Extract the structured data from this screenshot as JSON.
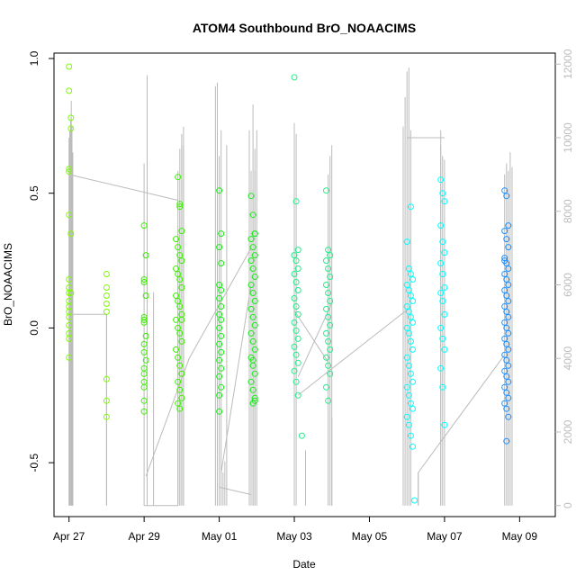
{
  "chart_data": {
    "type": "scatter",
    "title": "ATOM4 Southbound BrO_NOAACIMS",
    "xlabel": "Date",
    "ylabel": "BrO_NOAACIMS",
    "x_ticks": [
      {
        "day": 0,
        "label": "Apr 27"
      },
      {
        "day": 2,
        "label": "Apr 29"
      },
      {
        "day": 4,
        "label": "May 01"
      },
      {
        "day": 6,
        "label": "May 03"
      },
      {
        "day": 8,
        "label": "May 05"
      },
      {
        "day": 10,
        "label": "May 07"
      },
      {
        "day": 12,
        "label": "May 09"
      }
    ],
    "xlim": [
      -0.4,
      12.95
    ],
    "ylim": [
      -0.7,
      1.02
    ],
    "y_ticks": [
      {
        "value": -0.5,
        "label": "-0.5"
      },
      {
        "value": 0.0,
        "label": "0.0"
      },
      {
        "value": 0.5,
        "label": "0.5"
      },
      {
        "value": 1.0,
        "label": "1.0"
      }
    ],
    "y2_label": "",
    "y2lim": [
      -300,
      12300
    ],
    "y2_ticks": [
      {
        "value": 0,
        "label": "0"
      },
      {
        "value": 2000,
        "label": "2000"
      },
      {
        "value": 4000,
        "label": "4000"
      },
      {
        "value": 6000,
        "label": "6000"
      },
      {
        "value": 8000,
        "label": "8000"
      },
      {
        "value": 10000,
        "label": "10000"
      },
      {
        "value": 12000,
        "label": "12000"
      }
    ],
    "series": [
      {
        "name": "BrO_NOAACIMS",
        "color": "#7cfc00",
        "x": [
          0.0,
          0.0,
          0.05,
          0.05,
          0.0,
          0.0,
          0.0,
          0.05,
          0.0,
          0.0,
          0.0,
          0.0,
          0.0,
          0.0,
          0.0,
          0.0,
          0.0,
          0.0,
          0.0,
          0.05,
          1.0,
          1.0,
          1.0,
          1.0,
          1.0,
          1.0,
          1.0,
          1.0
        ],
        "y": [
          0.97,
          0.88,
          0.78,
          0.74,
          0.59,
          0.58,
          0.42,
          0.35,
          0.18,
          0.15,
          0.13,
          0.1,
          0.08,
          0.06,
          0.04,
          0.01,
          -0.02,
          -0.04,
          -0.11,
          0.13,
          0.2,
          0.15,
          0.12,
          0.09,
          0.06,
          -0.19,
          -0.27,
          -0.33
        ]
      },
      {
        "name": "BrO_NOAACIMS",
        "color": "#3cf000",
        "x": [
          2.0,
          2.05,
          2.0,
          2.0,
          2.05,
          2.0,
          2.0,
          2.0,
          2.05,
          2.0,
          2.0,
          2.05,
          2.0,
          2.0,
          2.0,
          2.0,
          2.0,
          2.0,
          2.9,
          2.95,
          3.0,
          2.85,
          2.9,
          2.95,
          3.0,
          2.85,
          2.9,
          2.95,
          3.0,
          2.85,
          2.9,
          2.95,
          3.0,
          2.85,
          2.9,
          2.95,
          3.0,
          2.85,
          2.9,
          2.95,
          3.0,
          2.9,
          2.95,
          3.0,
          2.9,
          2.95,
          3.0,
          2.95
        ],
        "y": [
          0.38,
          0.27,
          0.18,
          0.17,
          0.12,
          0.04,
          0.03,
          0.02,
          -0.03,
          -0.06,
          -0.09,
          -0.12,
          -0.15,
          -0.17,
          -0.2,
          -0.22,
          -0.27,
          -0.31,
          0.56,
          0.46,
          0.36,
          0.33,
          0.3,
          0.27,
          0.25,
          0.22,
          0.2,
          0.18,
          0.15,
          0.12,
          0.1,
          0.08,
          0.05,
          0.03,
          0.0,
          -0.02,
          -0.05,
          -0.08,
          -0.11,
          -0.14,
          -0.17,
          -0.2,
          -0.23,
          -0.26,
          -0.28,
          -0.3,
          0.03,
          0.45
        ]
      },
      {
        "name": "BrO_NOAACIMS",
        "color": "#1aec1a",
        "x": [
          4.0,
          4.05,
          4.0,
          4.05,
          4.0,
          4.05,
          4.0,
          4.05,
          4.0,
          4.05,
          4.0,
          4.05,
          4.0,
          4.05,
          4.0,
          4.05,
          4.0,
          4.05,
          4.0,
          4.0,
          4.85,
          4.9,
          4.95,
          4.85,
          4.9,
          4.95,
          4.85,
          4.9,
          4.95,
          4.85,
          4.9,
          4.95,
          4.85,
          4.9,
          4.95,
          4.85,
          4.9,
          4.95,
          4.85,
          4.9,
          4.95,
          4.85,
          4.9,
          4.95,
          4.9,
          4.95,
          4.9,
          4.95
        ],
        "y": [
          0.51,
          0.35,
          0.3,
          0.24,
          0.16,
          0.14,
          0.11,
          0.08,
          0.05,
          0.03,
          0.0,
          -0.03,
          -0.06,
          -0.09,
          -0.12,
          -0.15,
          -0.18,
          -0.22,
          -0.25,
          -0.31,
          0.49,
          0.42,
          0.35,
          0.33,
          0.3,
          0.27,
          0.25,
          0.22,
          0.19,
          0.16,
          0.13,
          0.1,
          0.07,
          0.04,
          0.01,
          -0.02,
          -0.05,
          -0.08,
          -0.11,
          -0.14,
          -0.17,
          -0.2,
          -0.23,
          -0.26,
          -0.28,
          -0.27,
          -0.12,
          0.35
        ]
      },
      {
        "name": "BrO_NOAACIMS",
        "color": "#22ee88",
        "x": [
          6.0,
          6.05,
          6.1,
          6.0,
          6.05,
          6.1,
          6.0,
          6.05,
          6.1,
          6.0,
          6.05,
          6.1,
          6.0,
          6.05,
          6.1,
          6.0,
          6.05,
          6.1,
          6.0,
          6.05,
          6.1,
          6.2,
          6.85,
          6.9,
          6.95,
          6.85,
          6.9,
          6.95,
          6.85,
          6.9,
          6.95,
          6.85,
          6.9,
          6.95,
          6.85,
          6.9,
          6.95,
          6.85,
          6.9,
          6.95,
          6.85,
          6.9
        ],
        "y": [
          0.93,
          0.47,
          0.29,
          0.27,
          0.25,
          0.22,
          0.2,
          0.17,
          0.14,
          0.11,
          0.08,
          0.05,
          0.02,
          -0.01,
          -0.04,
          -0.07,
          -0.1,
          -0.13,
          -0.16,
          -0.2,
          -0.25,
          -0.4,
          0.51,
          0.29,
          0.27,
          0.25,
          0.22,
          0.19,
          0.16,
          0.13,
          0.1,
          0.07,
          0.04,
          0.01,
          -0.02,
          -0.05,
          -0.08,
          -0.11,
          -0.14,
          -0.17,
          -0.22,
          -0.27
        ]
      },
      {
        "name": "BrO_NOAACIMS",
        "color": "#00ffff",
        "x": [
          9.0,
          9.05,
          9.1,
          9.15,
          9.0,
          9.05,
          9.1,
          9.15,
          9.0,
          9.05,
          9.1,
          9.15,
          9.0,
          9.05,
          9.1,
          9.15,
          9.0,
          9.05,
          9.1,
          9.15,
          9.0,
          9.05,
          9.1,
          9.15,
          9.0,
          9.05,
          9.1,
          9.15,
          9.1,
          9.2,
          9.9,
          9.95,
          10.0,
          9.9,
          9.95,
          10.0,
          9.9,
          9.95,
          10.0,
          9.9,
          9.95,
          10.0,
          9.9,
          9.95,
          10.0,
          9.9,
          9.95,
          10.0
        ],
        "y": [
          0.32,
          0.22,
          0.2,
          0.18,
          0.16,
          0.14,
          0.12,
          0.1,
          0.08,
          0.06,
          0.04,
          0.02,
          0.0,
          -0.02,
          -0.05,
          -0.08,
          -0.11,
          -0.14,
          -0.17,
          -0.2,
          -0.22,
          -0.25,
          -0.28,
          -0.3,
          -0.33,
          -0.36,
          -0.4,
          -0.44,
          0.45,
          -0.64,
          0.55,
          0.5,
          0.47,
          0.38,
          0.32,
          0.28,
          0.24,
          0.2,
          0.15,
          0.13,
          0.1,
          0.05,
          0.0,
          -0.04,
          -0.08,
          -0.15,
          -0.22,
          -0.36
        ]
      },
      {
        "name": "BrO_NOAACIMS",
        "color": "#1e90ff",
        "x": [
          11.6,
          11.65,
          11.7,
          11.6,
          11.65,
          11.7,
          11.6,
          11.65,
          11.7,
          11.6,
          11.65,
          11.7,
          11.6,
          11.65,
          11.7,
          11.6,
          11.65,
          11.7,
          11.6,
          11.65,
          11.7,
          11.6,
          11.65,
          11.7,
          11.6,
          11.65,
          11.7,
          11.6,
          11.65,
          11.7,
          11.6,
          11.65,
          11.7,
          11.6,
          11.65,
          11.7,
          11.65,
          11.6
        ],
        "y": [
          0.51,
          0.49,
          0.38,
          0.36,
          0.33,
          0.3,
          0.26,
          0.24,
          0.22,
          0.2,
          0.18,
          0.16,
          0.14,
          0.12,
          0.1,
          0.08,
          0.06,
          0.04,
          0.02,
          0.0,
          -0.02,
          -0.04,
          -0.06,
          -0.08,
          -0.1,
          -0.12,
          -0.14,
          -0.16,
          -0.18,
          -0.2,
          -0.22,
          -0.24,
          -0.26,
          -0.28,
          -0.3,
          -0.33,
          -0.42,
          0.25
        ]
      }
    ],
    "altitude": {
      "name": "altitude",
      "color": "#bbbbbb",
      "x": [
        0.0,
        0.0,
        0.02,
        0.04,
        0.06,
        0.08,
        0.1,
        0.1,
        1.0,
        1.0,
        1.0,
        2.0,
        2.0,
        2.08,
        2.08,
        2.25,
        2.25,
        2.9,
        2.9,
        2.95,
        3.0,
        3.05,
        3.05,
        2.95,
        2.85,
        2.2,
        2.85,
        2.9,
        2.95,
        3.0,
        3.05,
        3.05,
        3.9,
        3.95,
        4.0,
        4.05,
        4.1,
        4.1,
        4.15,
        4.2,
        4.8,
        4.85,
        4.9,
        4.95,
        5.0,
        5.0,
        4.0,
        4.0,
        4.85,
        4.9,
        4.95,
        5.0,
        5.0,
        6.0,
        6.05,
        6.1,
        6.1,
        6.3,
        6.9,
        6.95,
        7.0,
        7.0,
        6.3,
        7.0,
        7.0,
        8.9,
        8.95,
        9.0,
        9.05,
        9.1,
        9.1,
        10.0,
        10.0,
        9.9,
        9.9,
        9.95,
        10.0,
        10.0,
        9.3,
        9.3,
        11.6,
        11.6,
        11.65,
        11.7,
        11.75,
        11.8,
        11.8
      ],
      "y": [
        0,
        10000,
        10200,
        10500,
        11000,
        10300,
        9600,
        5200,
        5200,
        0,
        0,
        0,
        9300,
        11700,
        10200,
        5800,
        0,
        0,
        9100,
        9700,
        10100,
        9800,
        0,
        0,
        0,
        0,
        0,
        7400,
        8300,
        9800,
        10300,
        0,
        11400,
        11500,
        9500,
        10200,
        0,
        900,
        1200,
        9800,
        10200,
        9100,
        10900,
        9700,
        0,
        0,
        0,
        0,
        0,
        8600,
        9100,
        10200,
        0,
        10400,
        10100,
        0,
        0,
        0,
        9000,
        9500,
        9800,
        0,
        1500,
        2400,
        0,
        10300,
        11100,
        11800,
        11900,
        10200,
        0,
        0,
        9400,
        9800,
        10200,
        9500,
        0,
        0,
        900,
        900,
        0,
        9000,
        9300,
        9100,
        9600,
        9200,
        0
      ]
    },
    "altitude_trace": {
      "x": [
        0.0,
        0.02,
        0.04,
        0.06,
        0.08,
        0.1,
        1.0,
        1.0,
        1.1,
        1.1,
        1.1,
        1.1,
        2.0,
        2.1,
        2.2,
        2.3,
        2.9,
        2.95,
        3.0,
        3.05,
        3.1,
        3.1,
        3.15,
        3.2,
        3.25,
        3.3,
        4.0,
        4.1,
        4.2,
        4.3,
        4.4,
        4.5,
        4.6,
        4.7,
        4.8,
        4.9,
        5.0,
        5.1,
        5.2,
        5.3,
        5.4,
        5.5,
        5.6,
        5.7,
        5.8,
        5.9,
        6.0,
        6.05,
        6.1,
        6.2,
        6.3,
        6.4,
        6.5,
        6.6,
        6.7,
        6.8,
        6.9,
        7.0,
        7.1,
        7.2,
        7.3,
        7.4,
        7.5,
        7.6,
        7.7,
        7.8,
        7.9,
        8.0,
        8.1,
        8.2,
        8.3,
        8.4,
        8.5,
        8.6,
        8.7,
        8.8,
        8.9,
        9.0,
        9.1,
        9.2,
        9.3,
        9.4,
        9.5,
        9.6,
        9.7,
        9.8,
        9.9,
        10.0,
        10.1,
        10.2,
        10.3,
        10.4,
        10.5,
        10.6,
        10.7,
        10.8,
        10.9,
        11.0,
        11.1,
        11.2,
        11.3,
        11.4,
        11.5,
        11.6,
        11.7,
        11.8
      ],
      "y": [
        5200,
        5200,
        5200,
        5200,
        5200,
        5200,
        5200,
        0,
        0,
        0,
        0,
        0,
        0,
        0,
        0,
        0,
        0,
        9000,
        9000,
        9000,
        9000,
        0,
        0,
        0,
        0,
        0,
        0,
        0,
        0,
        0,
        0,
        0,
        0,
        0,
        0,
        0,
        0,
        0,
        0,
        0,
        0,
        0,
        0,
        0,
        0,
        0,
        0,
        0,
        0,
        0,
        0,
        0,
        0,
        0,
        0,
        0,
        0,
        0,
        0,
        0,
        0,
        0,
        0,
        0,
        0,
        0,
        0,
        0,
        0,
        0,
        0,
        0,
        0,
        0,
        0,
        0,
        0,
        0,
        0,
        0,
        0,
        0,
        0,
        0,
        0,
        0,
        0,
        0,
        0,
        0,
        0,
        0,
        0,
        0,
        0,
        0,
        0,
        0,
        0,
        0,
        0,
        0,
        0,
        0,
        0,
        0
      ]
    }
  }
}
